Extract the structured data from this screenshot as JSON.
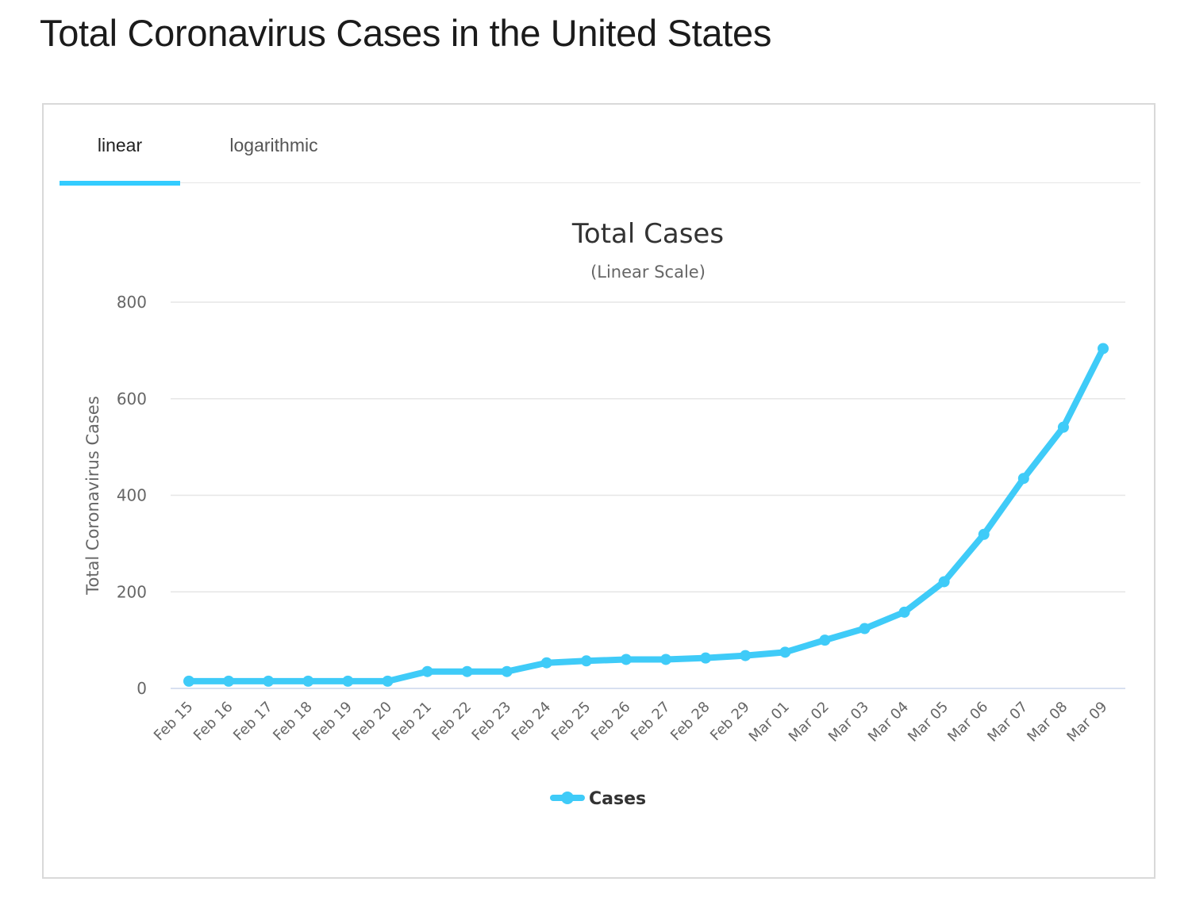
{
  "page": {
    "title": "Total Coronavirus Cases in the United States"
  },
  "tabs": {
    "linear": "linear",
    "logarithmic": "logarithmic"
  },
  "colors": {
    "series": "#3fcbf8",
    "grid": "#e6e6e6",
    "axis_text": "#666666",
    "title_text": "#333333"
  },
  "chart_data": {
    "type": "line",
    "title": "Total Cases",
    "subtitle": "(Linear Scale)",
    "xlabel": "",
    "ylabel": "Total Coronavirus Cases",
    "ylim": [
      0,
      800
    ],
    "yticks": [
      0,
      200,
      400,
      600,
      800
    ],
    "grid": true,
    "legend_position": "bottom-center",
    "categories": [
      "Feb 15",
      "Feb 16",
      "Feb 17",
      "Feb 18",
      "Feb 19",
      "Feb 20",
      "Feb 21",
      "Feb 22",
      "Feb 23",
      "Feb 24",
      "Feb 25",
      "Feb 26",
      "Feb 27",
      "Feb 28",
      "Feb 29",
      "Mar 01",
      "Mar 02",
      "Mar 03",
      "Mar 04",
      "Mar 05",
      "Mar 06",
      "Mar 07",
      "Mar 08",
      "Mar 09"
    ],
    "series": [
      {
        "name": "Cases",
        "values": [
          15,
          15,
          15,
          15,
          15,
          15,
          35,
          35,
          35,
          53,
          57,
          60,
          60,
          63,
          68,
          75,
          100,
          124,
          158,
          221,
          319,
          435,
          541,
          704
        ]
      }
    ]
  }
}
